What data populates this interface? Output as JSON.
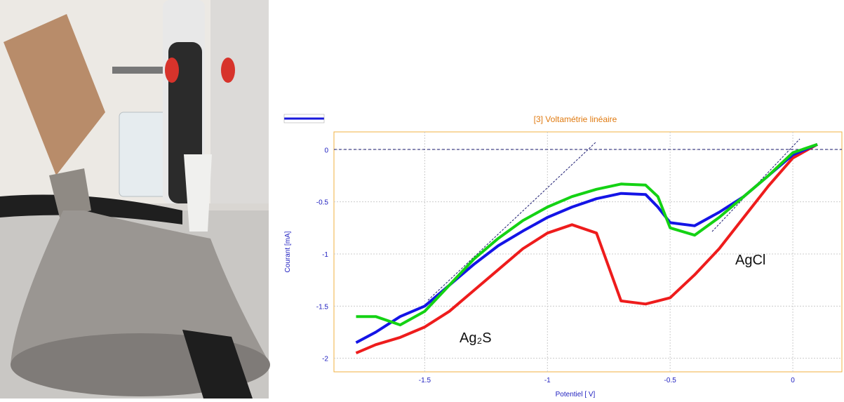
{
  "chart_data": {
    "type": "line",
    "title": "[3] Voltamétrie linéaire",
    "x_label": "Potentiel [ V]",
    "y_label": "Courant [mA]",
    "annotations": [
      "Ag₂S",
      "AgCl"
    ],
    "x": [
      -1.78,
      -1.7,
      -1.6,
      -1.5,
      -1.4,
      -1.3,
      -1.2,
      -1.1,
      -1.0,
      -0.9,
      -0.8,
      -0.7,
      -0.6,
      -0.55,
      -0.5,
      -0.4,
      -0.3,
      -0.2,
      -0.1,
      0,
      0.1
    ],
    "series": [
      {
        "color": "#ee1c1c",
        "values": [
          -1.95,
          -1.87,
          -1.8,
          -1.7,
          -1.55,
          -1.35,
          -1.15,
          -0.95,
          -0.8,
          -0.72,
          -0.8,
          -1.45,
          -1.48,
          -1.45,
          -1.42,
          -1.2,
          -0.95,
          -0.65,
          -0.35,
          -0.08,
          0.05
        ]
      },
      {
        "color": "#1414e6",
        "values": [
          -1.85,
          -1.75,
          -1.6,
          -1.5,
          -1.3,
          -1.1,
          -0.92,
          -0.78,
          -0.65,
          -0.55,
          -0.47,
          -0.42,
          -0.43,
          -0.55,
          -0.7,
          -0.73,
          -0.6,
          -0.45,
          -0.25,
          -0.05,
          0.05
        ]
      },
      {
        "color": "#14d214",
        "values": [
          -1.6,
          -1.6,
          -1.68,
          -1.55,
          -1.3,
          -1.05,
          -0.85,
          -0.68,
          -0.55,
          -0.45,
          -0.38,
          -0.33,
          -0.34,
          -0.45,
          -0.75,
          -0.82,
          -0.65,
          -0.45,
          -0.25,
          -0.03,
          0.05
        ]
      }
    ],
    "xlim": [
      -1.87,
      0.2
    ],
    "ylim": [
      -2.13,
      0.17
    ],
    "xticks": [
      -1.5,
      -1,
      -0.5,
      0
    ],
    "yticks": [
      -2,
      -1.5,
      -1,
      -0.5,
      0
    ],
    "grid": true
  }
}
